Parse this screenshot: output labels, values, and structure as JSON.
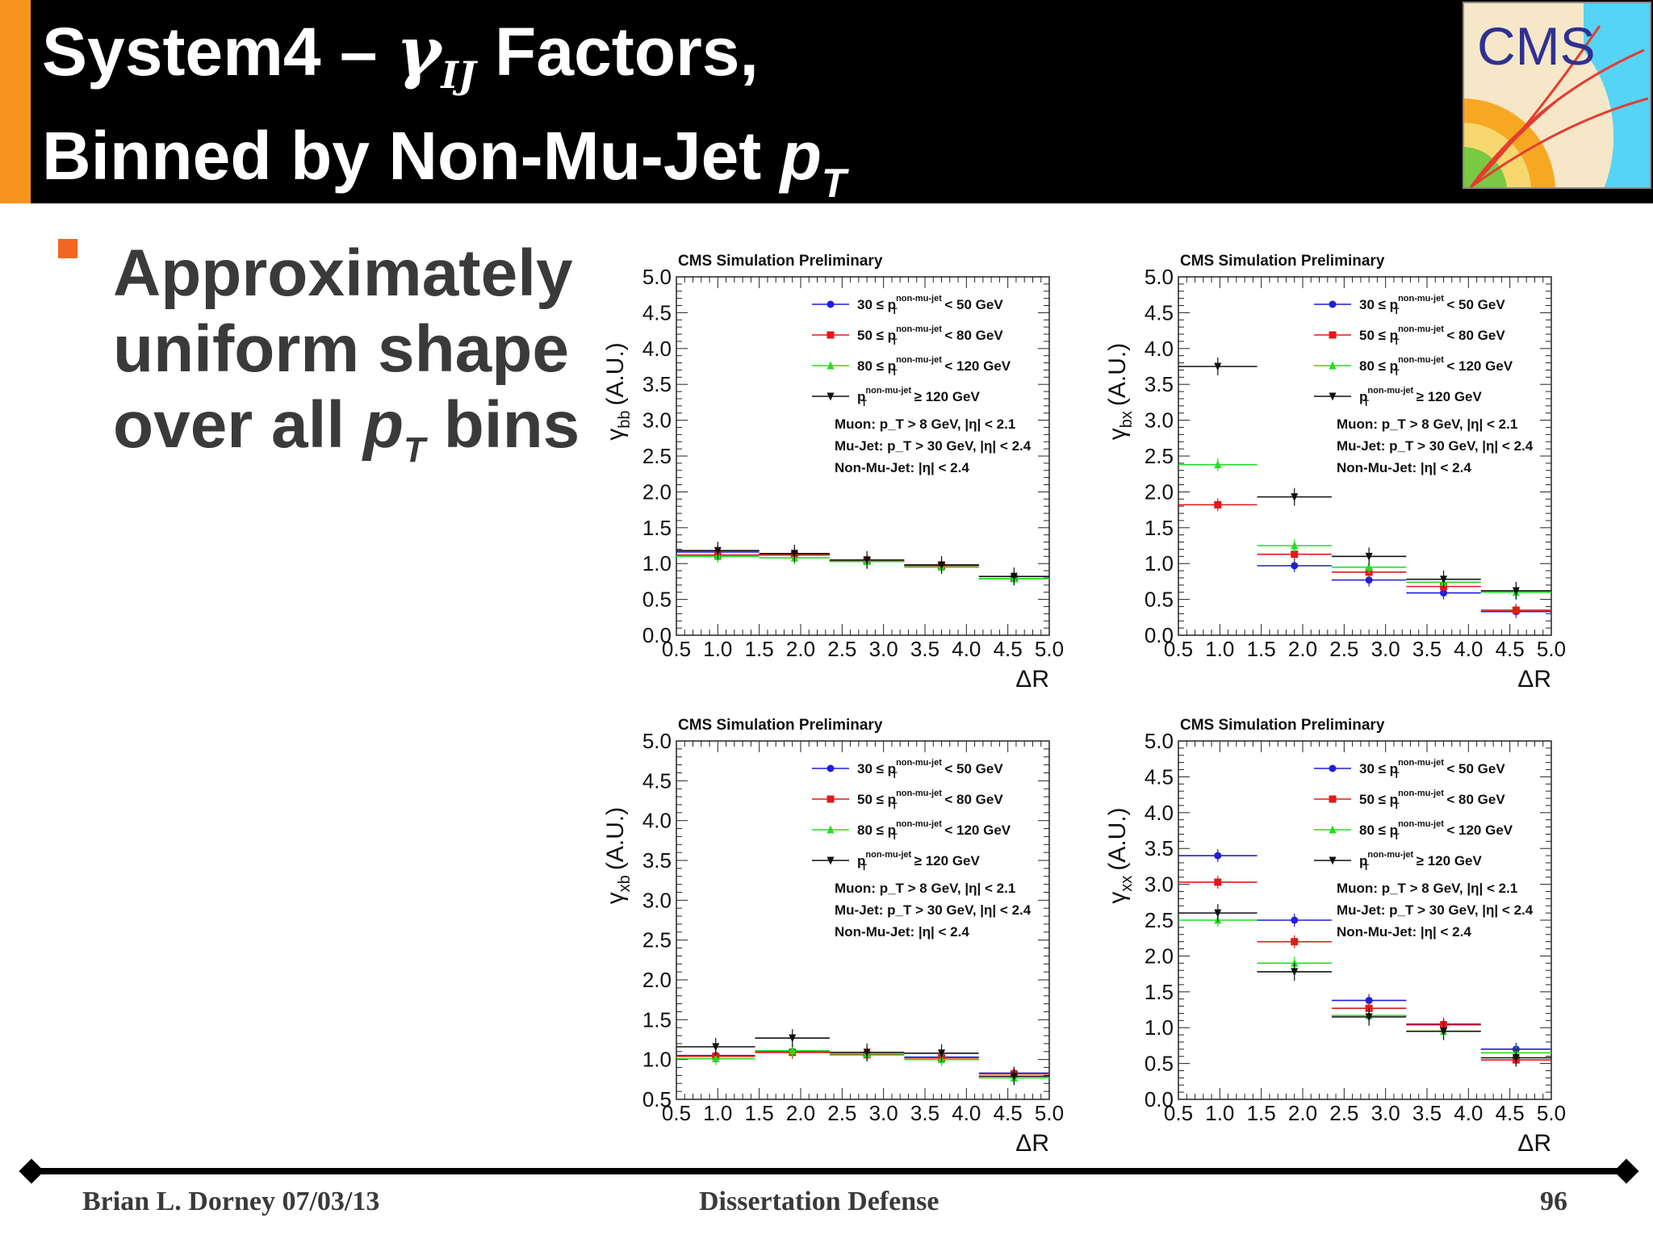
{
  "header": {
    "title_line1_pre": "System4 – ",
    "title_gamma": "γ",
    "title_gamma_sub": "IJ",
    "title_line1_post": " Factors,",
    "title_line2_pre": "Binned by Non-Mu-Jet ",
    "title_line2_p": "p",
    "title_line2_sub": "T"
  },
  "logo": {
    "text": "CMS",
    "colors": [
      "#2e3192",
      "#f5d76e",
      "#f7a823",
      "#55d4f5",
      "#7ac943",
      "#e43d30"
    ]
  },
  "bullet": {
    "line1": "Approximately",
    "line2": "uniform shape",
    "line3_pre": "over all ",
    "line3_p": "p",
    "line3_sub": "T",
    "line3_post": " bins"
  },
  "footer": {
    "author_date": "Brian L. Dorney 07/03/13",
    "event": "Dissertation Defense",
    "page": "96"
  },
  "chart_data": [
    {
      "type": "scatter",
      "title": "CMS Simulation Preliminary",
      "ylabel": "γ",
      "ylabel_sub": "bb",
      "ylabel_unit": "(A.U.)",
      "xlabel": "ΔR",
      "xlim": [
        0.5,
        5.0
      ],
      "ylim": [
        0.0,
        5.0
      ],
      "xticks": [
        "0.5",
        "1.0",
        "1.5",
        "2.0",
        "2.5",
        "3.0",
        "3.5",
        "4.0",
        "4.5",
        "5.0"
      ],
      "yticks": [
        "0.0",
        "0.5",
        "1.0",
        "1.5",
        "2.0",
        "2.5",
        "3.0",
        "3.5",
        "4.0",
        "4.5",
        "5.0"
      ],
      "bins": [
        [
          0.5,
          1.5
        ],
        [
          1.5,
          2.35
        ],
        [
          2.35,
          3.25
        ],
        [
          3.25,
          4.15
        ],
        [
          4.15,
          5.0
        ]
      ],
      "series": [
        {
          "name": "30 ≤ p",
          "name_sup": "non-mu-jet",
          "name_sub": "T",
          "name_post": " < 50 GeV",
          "color": "#1f1fd8",
          "marker": "circle",
          "values": [
            1.16,
            1.12,
            1.03,
            0.98,
            0.79
          ]
        },
        {
          "name": "50 ≤ p",
          "name_sup": "non-mu-jet",
          "name_sub": "T",
          "name_post": " < 80 GeV",
          "color": "#e01a1a",
          "marker": "square",
          "values": [
            1.12,
            1.12,
            1.04,
            0.97,
            0.79
          ]
        },
        {
          "name": "80 ≤ p",
          "name_sup": "non-mu-jet",
          "name_sub": "T",
          "name_post": " < 120 GeV",
          "color": "#22dd22",
          "marker": "triangle",
          "values": [
            1.1,
            1.08,
            1.03,
            0.95,
            0.79
          ]
        },
        {
          "name": "p",
          "name_sup": "non-mu-jet",
          "name_sub": "T",
          "name_post": " ≥ 120 GeV",
          "color": "#111111",
          "marker": "triangle-down",
          "values": [
            1.18,
            1.14,
            1.05,
            0.98,
            0.82
          ]
        }
      ],
      "annotations": [
        "Muon: p_T > 8 GeV, |η| < 2.1",
        "Mu-Jet: p_T > 30 GeV, |η| < 2.4",
        "Non-Mu-Jet: |η| < 2.4"
      ]
    },
    {
      "type": "scatter",
      "title": "CMS Simulation Preliminary",
      "ylabel": "γ",
      "ylabel_sub": "bx",
      "ylabel_unit": "(A.U.)",
      "xlabel": "ΔR",
      "xlim": [
        0.5,
        5.0
      ],
      "ylim": [
        0.0,
        5.0
      ],
      "xticks": [
        "0.5",
        "1.0",
        "1.5",
        "2.0",
        "2.5",
        "3.0",
        "3.5",
        "4.0",
        "4.5",
        "5.0"
      ],
      "yticks": [
        "0.0",
        "0.5",
        "1.0",
        "1.5",
        "2.0",
        "2.5",
        "3.0",
        "3.5",
        "4.0",
        "4.5",
        "5.0"
      ],
      "bins": [
        [
          0.5,
          1.45
        ],
        [
          1.45,
          2.35
        ],
        [
          2.35,
          3.25
        ],
        [
          3.25,
          4.15
        ],
        [
          4.15,
          5.0
        ]
      ],
      "series": [
        {
          "name": "30 ≤ p",
          "name_sup": "non-mu-jet",
          "name_sub": "T",
          "name_post": " < 50 GeV",
          "color": "#1f1fd8",
          "marker": "circle",
          "values": [
            null,
            0.97,
            0.77,
            0.59,
            0.33
          ]
        },
        {
          "name": "50 ≤ p",
          "name_sup": "non-mu-jet",
          "name_sub": "T",
          "name_post": " < 80 GeV",
          "color": "#e01a1a",
          "marker": "square",
          "values": [
            1.82,
            1.13,
            0.88,
            0.68,
            0.35
          ]
        },
        {
          "name": "80 ≤ p",
          "name_sup": "non-mu-jet",
          "name_sub": "T",
          "name_post": " < 120 GeV",
          "color": "#22dd22",
          "marker": "triangle",
          "values": [
            2.38,
            1.25,
            0.95,
            0.74,
            0.6
          ]
        },
        {
          "name": "p",
          "name_sup": "non-mu-jet",
          "name_sub": "T",
          "name_post": " ≥ 120 GeV",
          "color": "#111111",
          "marker": "triangle-down",
          "values": [
            3.75,
            1.93,
            1.1,
            0.78,
            0.62
          ]
        }
      ],
      "annotations": [
        "Muon: p_T > 8 GeV, |η| < 2.1",
        "Mu-Jet: p_T > 30 GeV, |η| < 2.4",
        "Non-Mu-Jet: |η| < 2.4"
      ]
    },
    {
      "type": "scatter",
      "title": "CMS Simulation Preliminary",
      "ylabel": "γ",
      "ylabel_sub": "xb",
      "ylabel_unit": "(A.U.)",
      "xlabel": "ΔR",
      "xlim": [
        0.5,
        5.0
      ],
      "ylim": [
        0.5,
        5.0
      ],
      "xticks": [
        "0.5",
        "1.0",
        "1.5",
        "2.0",
        "2.5",
        "3.0",
        "3.5",
        "4.0",
        "4.5",
        "5.0"
      ],
      "yticks": [
        "0.5",
        "1.0",
        "1.5",
        "2.0",
        "2.5",
        "3.0",
        "3.5",
        "4.0",
        "4.5",
        "5.0"
      ],
      "bins": [
        [
          0.5,
          1.45
        ],
        [
          1.45,
          2.35
        ],
        [
          2.35,
          3.25
        ],
        [
          3.25,
          4.15
        ],
        [
          4.15,
          5.0
        ]
      ],
      "series": [
        {
          "name": "30 ≤ p",
          "name_sup": "non-mu-jet",
          "name_sub": "T",
          "name_post": " < 50 GeV",
          "color": "#1f1fd8",
          "marker": "circle",
          "values": [
            1.05,
            1.1,
            1.07,
            1.03,
            0.83
          ]
        },
        {
          "name": "50 ≤ p",
          "name_sup": "non-mu-jet",
          "name_sub": "T",
          "name_post": " < 80 GeV",
          "color": "#e01a1a",
          "marker": "square",
          "values": [
            1.04,
            1.09,
            1.06,
            1.02,
            0.82
          ]
        },
        {
          "name": "80 ≤ p",
          "name_sup": "non-mu-jet",
          "name_sub": "T",
          "name_post": " < 120 GeV",
          "color": "#22dd22",
          "marker": "triangle",
          "values": [
            1.01,
            1.11,
            1.07,
            1.0,
            0.77
          ]
        },
        {
          "name": "p",
          "name_sup": "non-mu-jet",
          "name_sub": "T",
          "name_post": " ≥ 120 GeV",
          "color": "#111111",
          "marker": "triangle-down",
          "values": [
            1.16,
            1.27,
            1.09,
            1.08,
            0.79
          ]
        }
      ],
      "annotations": [
        "Muon: p_T > 8 GeV, |η| < 2.1",
        "Mu-Jet: p_T > 30 GeV, |η| < 2.4",
        "Non-Mu-Jet: |η| < 2.4"
      ]
    },
    {
      "type": "scatter",
      "title": "CMS Simulation Preliminary",
      "ylabel": "γ",
      "ylabel_sub": "xx",
      "ylabel_unit": "(A.U.)",
      "xlabel": "ΔR",
      "xlim": [
        0.5,
        5.0
      ],
      "ylim": [
        0.0,
        5.0
      ],
      "xticks": [
        "0.5",
        "1.0",
        "1.5",
        "2.0",
        "2.5",
        "3.0",
        "3.5",
        "4.0",
        "4.5",
        "5.0"
      ],
      "yticks": [
        "0.0",
        "0.5",
        "1.0",
        "1.5",
        "2.0",
        "2.5",
        "3.0",
        "3.5",
        "4.0",
        "4.5",
        "5.0"
      ],
      "bins": [
        [
          0.5,
          1.45
        ],
        [
          1.45,
          2.35
        ],
        [
          2.35,
          3.25
        ],
        [
          3.25,
          4.15
        ],
        [
          4.15,
          5.0
        ]
      ],
      "series": [
        {
          "name": "30 ≤ p",
          "name_sup": "non-mu-jet",
          "name_sub": "T",
          "name_post": " < 50 GeV",
          "color": "#1f1fd8",
          "marker": "circle",
          "values": [
            3.4,
            2.5,
            1.38,
            1.05,
            0.7
          ]
        },
        {
          "name": "50 ≤ p",
          "name_sup": "non-mu-jet",
          "name_sub": "T",
          "name_post": " < 80 GeV",
          "color": "#e01a1a",
          "marker": "square",
          "values": [
            3.03,
            2.2,
            1.27,
            1.04,
            0.55
          ]
        },
        {
          "name": "80 ≤ p",
          "name_sup": "non-mu-jet",
          "name_sub": "T",
          "name_post": " < 120 GeV",
          "color": "#22dd22",
          "marker": "triangle",
          "values": [
            2.5,
            1.9,
            1.17,
            0.95,
            0.65
          ]
        },
        {
          "name": "p",
          "name_sup": "non-mu-jet",
          "name_sub": "T",
          "name_post": " ≥ 120 GeV",
          "color": "#111111",
          "marker": "triangle-down",
          "values": [
            2.6,
            1.78,
            1.15,
            0.95,
            0.58
          ]
        }
      ],
      "annotations": [
        "Muon: p_T > 8 GeV, |η| < 2.1",
        "Mu-Jet: p_T > 30 GeV, |η| < 2.4",
        "Non-Mu-Jet: |η| < 2.4"
      ]
    }
  ]
}
